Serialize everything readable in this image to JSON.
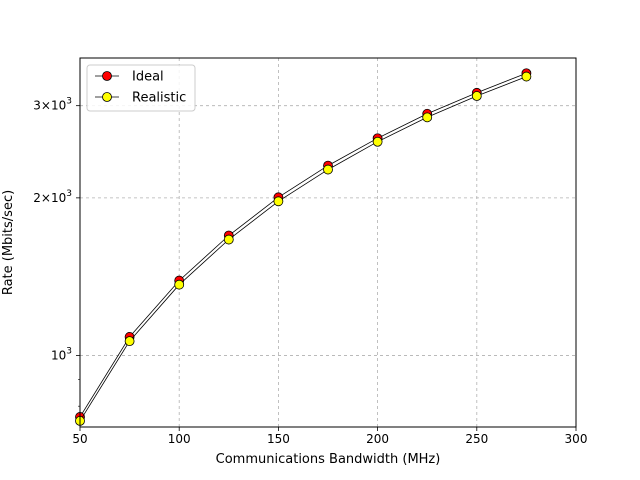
{
  "chart_data": {
    "type": "line",
    "title": "",
    "xlabel": "Communications Bandwidth (MHz)",
    "ylabel": "Rate (Mbits/sec)",
    "xlim": [
      50,
      300
    ],
    "ylim": [
      730,
      3700
    ],
    "yscale": "log",
    "grid": true,
    "legend_position": "top-left",
    "x_ticks": [
      50,
      100,
      150,
      200,
      250,
      300
    ],
    "x_tick_labels": [
      "50",
      "100",
      "150",
      "200",
      "250",
      "300"
    ],
    "y_ticks": [
      1000,
      2000,
      3000
    ],
    "y_tick_labels": [
      {
        "base": "10",
        "exp": "3"
      },
      {
        "base": "2×10",
        "exp": "3"
      },
      {
        "base": "3×10",
        "exp": "3"
      }
    ],
    "x": [
      50,
      75,
      100,
      125,
      150,
      175,
      200,
      225,
      250,
      275
    ],
    "series": [
      {
        "name": "Ideal",
        "color": "#ff0000",
        "values": [
          763,
          1085,
          1390,
          1695,
          2005,
          2305,
          2600,
          2895,
          3175,
          3460
        ]
      },
      {
        "name": "Realistic",
        "color": "#ffff00",
        "values": [
          750,
          1065,
          1365,
          1665,
          1970,
          2265,
          2560,
          2850,
          3130,
          3410
        ]
      }
    ]
  }
}
